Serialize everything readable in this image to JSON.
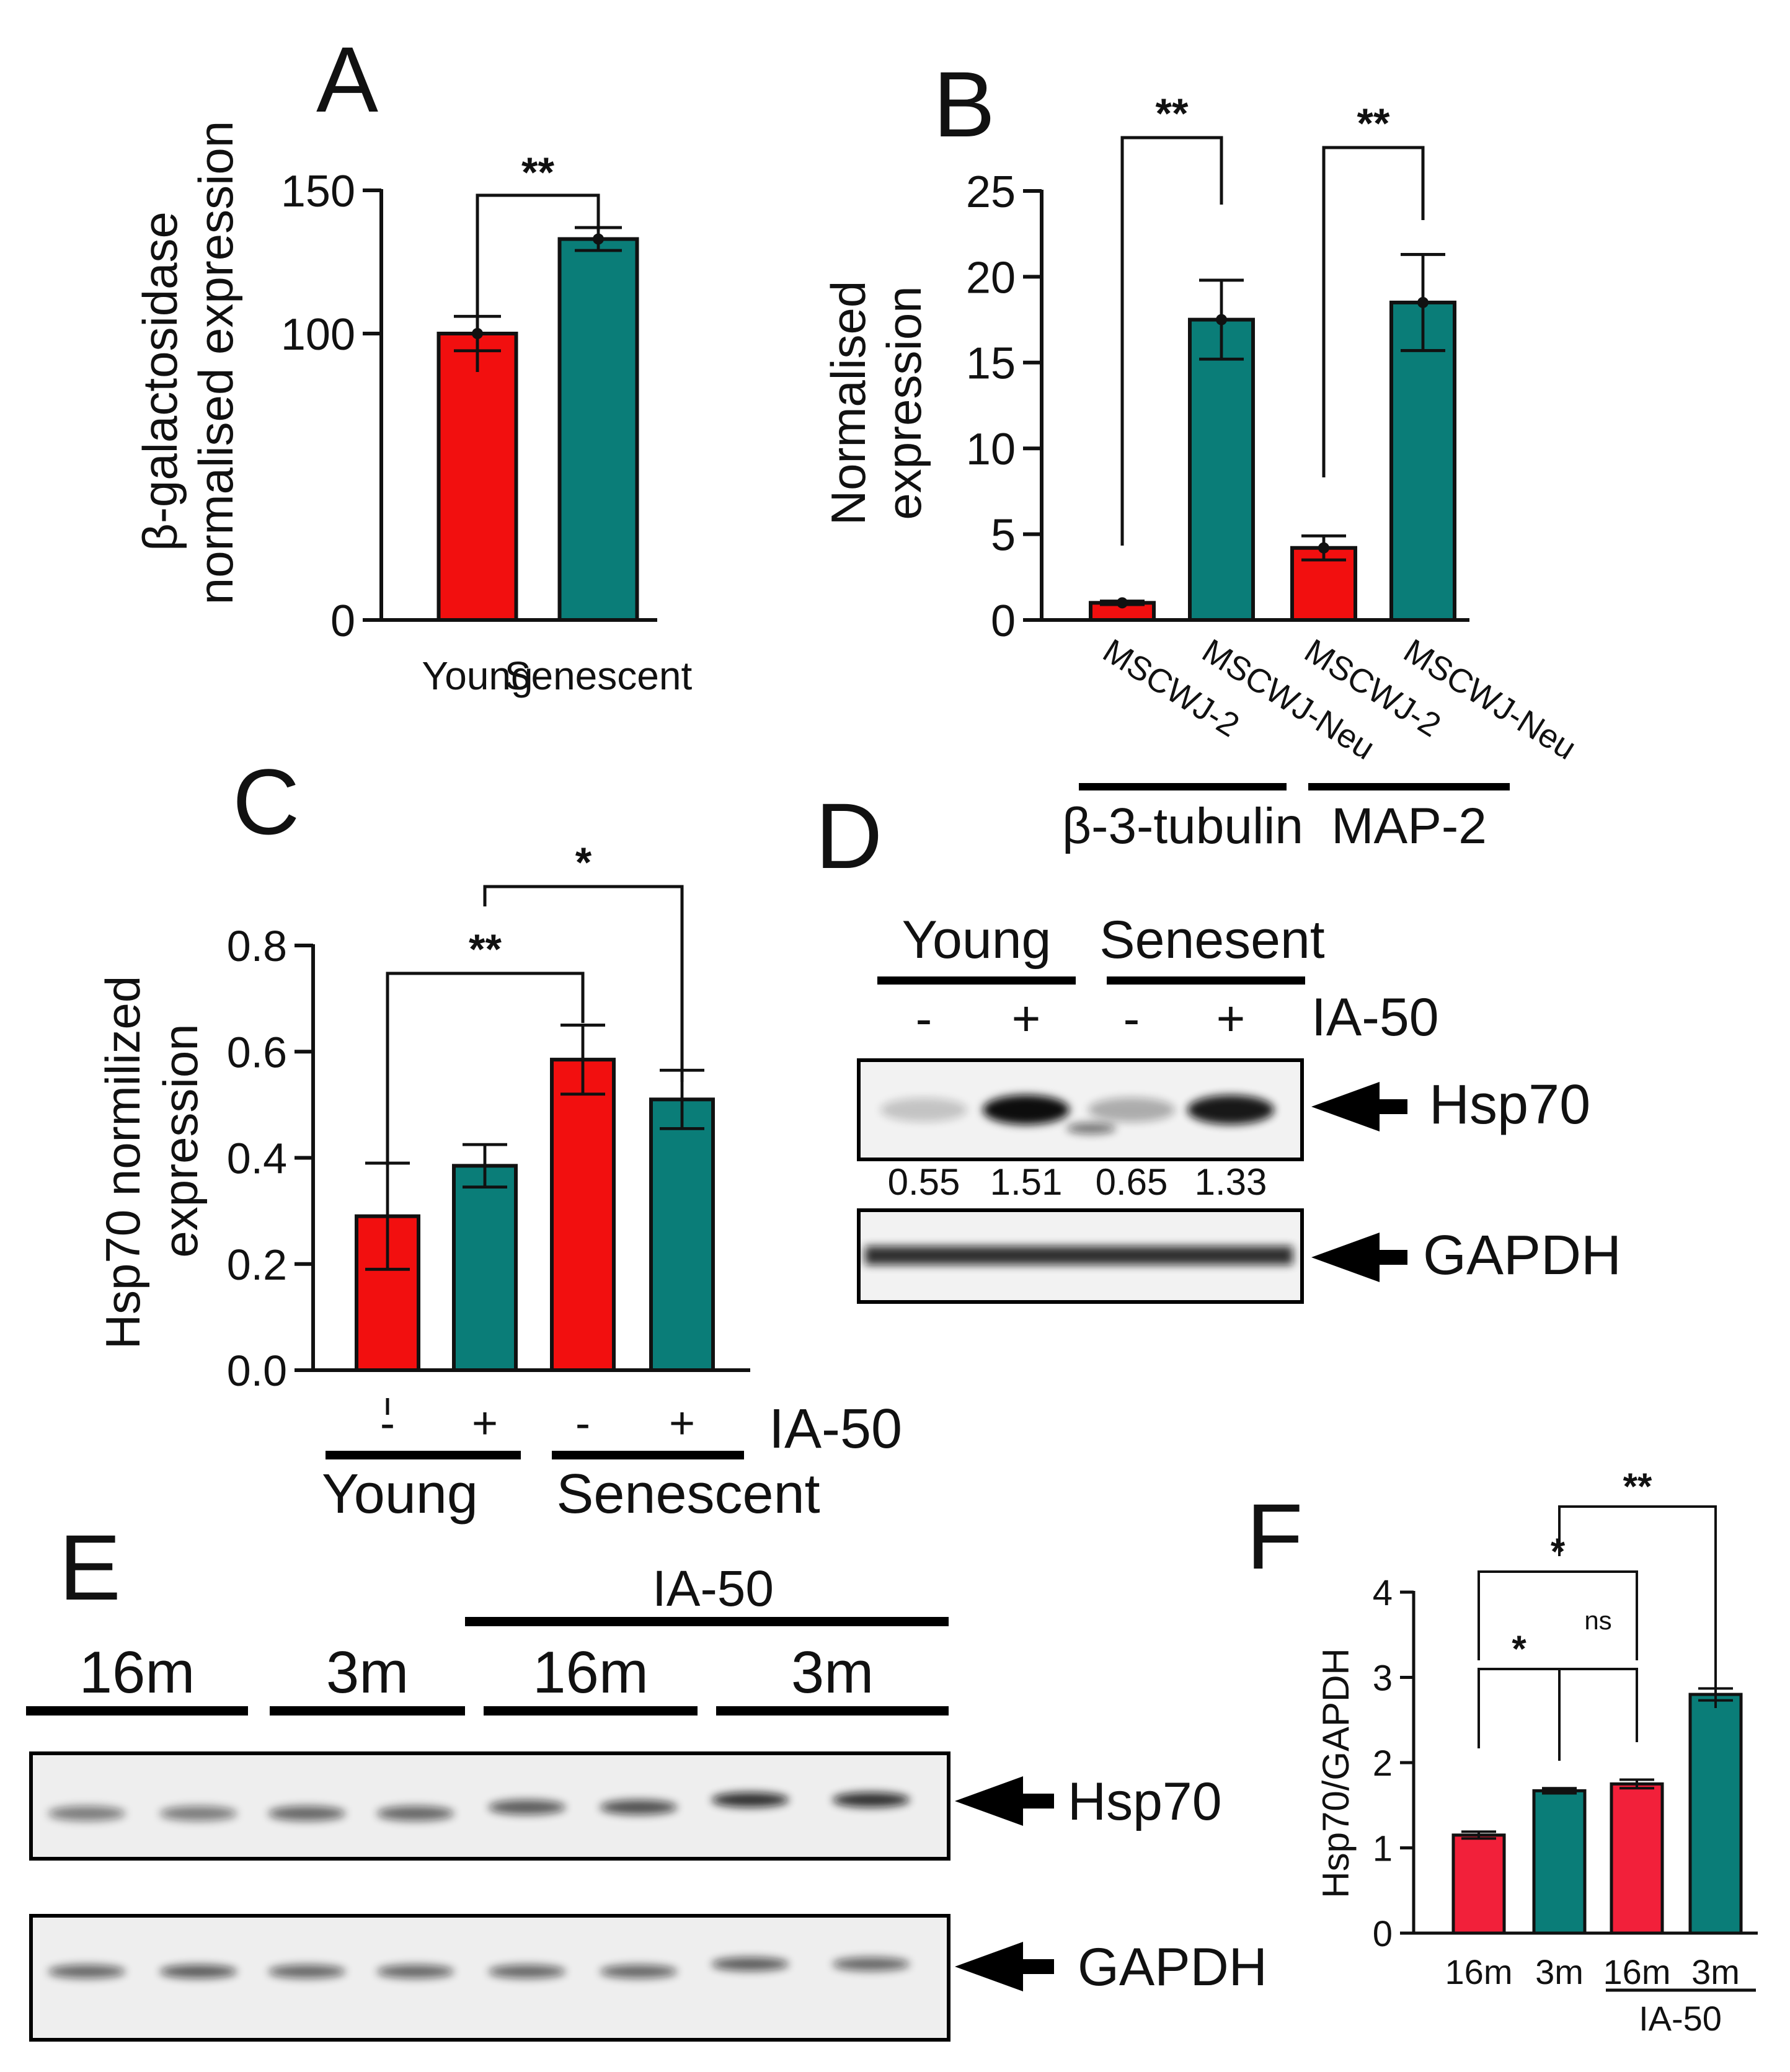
{
  "colors": {
    "red": "#f20f0f",
    "teal": "#0a7d78",
    "redF": "#f2203a",
    "ink": "#111111"
  },
  "chart_data": [
    {
      "panel": "A",
      "type": "bar",
      "categories": [
        "Young",
        "Senescent"
      ],
      "values": [
        100,
        133
      ],
      "errors": [
        6,
        4
      ],
      "colors": [
        "red",
        "teal"
      ],
      "ylabel": [
        "β-galactosidase",
        "normalised expression"
      ],
      "ylim": [
        0,
        150
      ],
      "yticks": [
        0,
        100,
        150
      ],
      "significance": [
        {
          "from": 0,
          "to": 1,
          "label": "**"
        }
      ]
    },
    {
      "panel": "B",
      "type": "bar",
      "categories": [
        "MSCWJ-2",
        "MSCWJ-Neu",
        "MSCWJ-2",
        "MSCWJ-Neu"
      ],
      "values": [
        1,
        17.5,
        4.2,
        18.5
      ],
      "errors": [
        0.1,
        2.3,
        0.7,
        2.8
      ],
      "colors": [
        "red",
        "teal",
        "red",
        "teal"
      ],
      "ylabel": [
        "Normalised",
        "expression"
      ],
      "ylim": [
        0,
        25
      ],
      "yticks": [
        0,
        5,
        10,
        15,
        20,
        25
      ],
      "groups": [
        {
          "label": "β-3-tubulin",
          "from": 0,
          "to": 1
        },
        {
          "label": "MAP-2",
          "from": 2,
          "to": 3
        }
      ],
      "significance": [
        {
          "from": 0,
          "to": 1,
          "label": "**"
        },
        {
          "from": 2,
          "to": 3,
          "label": "**"
        }
      ]
    },
    {
      "panel": "C",
      "type": "bar",
      "categories": [
        "-",
        "+",
        "-",
        "+"
      ],
      "values": [
        0.29,
        0.385,
        0.585,
        0.51
      ],
      "errors": [
        0.1,
        0.04,
        0.065,
        0.055
      ],
      "colors": [
        "red",
        "teal",
        "red",
        "teal"
      ],
      "ylabel": [
        "Hsp70 normilized",
        "expression"
      ],
      "ylim": [
        0,
        0.8
      ],
      "yticks": [
        "0.0",
        "0.2",
        "0.4",
        "0.6",
        "0.8"
      ],
      "treatment_label": "IA-50",
      "groups": [
        {
          "label": "Young",
          "from": 0,
          "to": 1
        },
        {
          "label": "Senescent",
          "from": 2,
          "to": 3
        }
      ],
      "significance": [
        {
          "from": 0,
          "to": 2,
          "label": "**"
        },
        {
          "from": 1,
          "to": 3,
          "label": "*"
        }
      ]
    },
    {
      "panel": "F",
      "type": "bar",
      "categories": [
        "16m",
        "3m",
        "16m",
        "3m"
      ],
      "values": [
        1.15,
        1.67,
        1.75,
        2.8
      ],
      "errors": [
        0.04,
        0.03,
        0.05,
        0.07
      ],
      "colors": [
        "redF",
        "teal",
        "redF",
        "teal"
      ],
      "ylabel": [
        "Hsp70/GAPDH"
      ],
      "ylim": [
        0,
        4
      ],
      "yticks": [
        0,
        1,
        2,
        3,
        4
      ],
      "treatment_label": "IA-50",
      "significance": [
        {
          "from": 0,
          "to": 1,
          "label": "*"
        },
        {
          "from": 1,
          "to": 2,
          "label": "ns"
        },
        {
          "from": 0,
          "to": 2,
          "label": "*"
        },
        {
          "from": 1,
          "to": 3,
          "label": "**"
        }
      ]
    }
  ],
  "blots": {
    "D": {
      "groups": [
        "Young",
        "Senesent"
      ],
      "signs": [
        "-",
        "+",
        "-",
        "+"
      ],
      "treatment_label": "IA-50",
      "bands": [
        "Hsp70",
        "GAPDH"
      ],
      "quantification": [
        "0.55",
        "1.51",
        "0.65",
        "1.33"
      ],
      "hsp70_intensity": [
        0.2,
        1,
        0.3,
        0.95
      ],
      "gapdh_intensity": [
        0.8,
        0.85,
        0.9,
        0.85
      ]
    },
    "E": {
      "treatment_label": "IA-50",
      "groups": [
        "16m",
        "3m",
        "16m",
        "3m"
      ],
      "bands": [
        "Hsp70",
        "GAPDH"
      ],
      "hsp70_intensity": [
        0.5,
        0.5,
        0.6,
        0.6,
        0.65,
        0.7,
        0.85,
        0.85
      ],
      "gapdh_intensity": [
        0.6,
        0.65,
        0.6,
        0.6,
        0.6,
        0.6,
        0.65,
        0.6
      ]
    }
  },
  "panels": {
    "A": "A",
    "B": "B",
    "C": "C",
    "D": "D",
    "E": "E",
    "F": "F"
  }
}
